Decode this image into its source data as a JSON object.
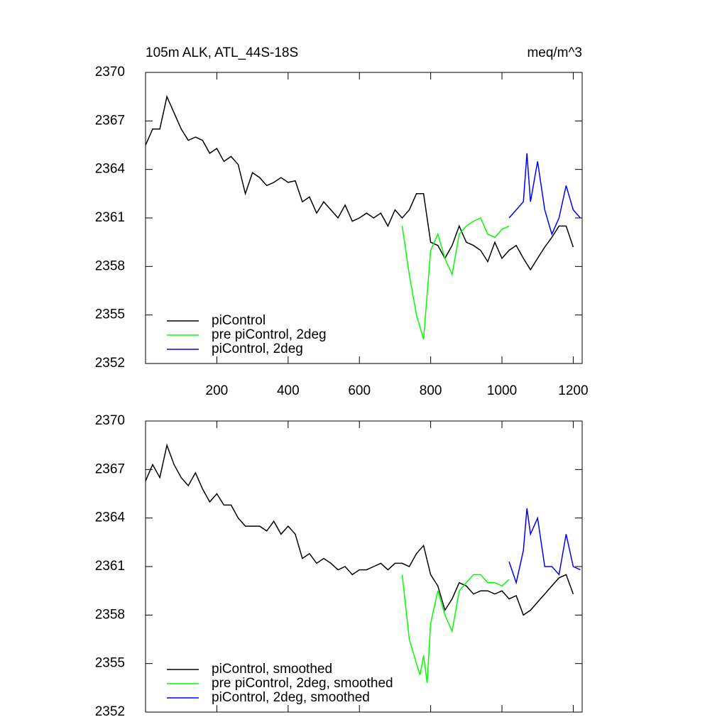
{
  "chart_data": [
    {
      "type": "line",
      "title": "105m ALK, ATL_44S-18S",
      "units": "meq/m^3",
      "xlim": [
        0,
        1225
      ],
      "xticks": [
        200,
        400,
        600,
        800,
        1000,
        1200
      ],
      "show_xtick_labels": true,
      "ylim": [
        2352,
        2370
      ],
      "yticks": [
        2352,
        2355,
        2358,
        2361,
        2364,
        2367,
        2370
      ],
      "series": [
        {
          "name": "piControl",
          "color": "#000000",
          "x": [
            0,
            20,
            40,
            60,
            80,
            100,
            120,
            140,
            160,
            180,
            200,
            220,
            240,
            260,
            280,
            300,
            320,
            340,
            360,
            380,
            400,
            420,
            440,
            460,
            480,
            500,
            520,
            540,
            560,
            580,
            600,
            620,
            640,
            660,
            680,
            700,
            720,
            740,
            760,
            780,
            800,
            820,
            840,
            860,
            880,
            900,
            920,
            940,
            960,
            980,
            1000,
            1020,
            1040,
            1060,
            1080,
            1100,
            1120,
            1140,
            1160,
            1180,
            1200
          ],
          "values": [
            2365.5,
            2366.5,
            2366.5,
            2368.5,
            2367.5,
            2366.5,
            2365.8,
            2366,
            2365.8,
            2365,
            2365.3,
            2364.5,
            2364.8,
            2364.3,
            2362.5,
            2363.8,
            2363.5,
            2363,
            2363.2,
            2363.5,
            2363.2,
            2363.3,
            2362,
            2362.3,
            2361.3,
            2362,
            2361.5,
            2361,
            2361.8,
            2360.8,
            2361,
            2361.3,
            2361,
            2361.3,
            2360.5,
            2361.5,
            2361,
            2361.5,
            2362.5,
            2362.5,
            2359.5,
            2359.3,
            2358.5,
            2359.3,
            2360.5,
            2359.5,
            2359.3,
            2359,
            2358.3,
            2359.5,
            2358.5,
            2359,
            2359.3,
            2358.5,
            2357.8,
            2358.5,
            2359.2,
            2359.8,
            2360.5,
            2360.5,
            2359.2
          ]
        },
        {
          "name": "pre piControl, 2deg",
          "color": "#00ff00",
          "x": [
            720,
            740,
            760,
            780,
            800,
            820,
            840,
            860,
            880,
            900,
            920,
            940,
            960,
            980,
            1000,
            1020
          ],
          "values": [
            2360.5,
            2357.5,
            2355,
            2353.5,
            2359,
            2360,
            2358.5,
            2357.5,
            2360,
            2360.5,
            2360.8,
            2361,
            2360,
            2359.8,
            2360.3,
            2360.5
          ]
        },
        {
          "name": "piControl, 2deg",
          "color": "#0000ff",
          "x": [
            1020,
            1040,
            1060,
            1070,
            1080,
            1100,
            1120,
            1140,
            1160,
            1180,
            1200,
            1220
          ],
          "values": [
            2361,
            2361.5,
            2362,
            2365,
            2362,
            2364.5,
            2361.5,
            2360,
            2361,
            2363,
            2361.5,
            2361
          ]
        }
      ]
    },
    {
      "type": "line",
      "xlim": [
        0,
        1225
      ],
      "xticks": [
        200,
        400,
        600,
        800,
        1000,
        1200
      ],
      "show_xtick_labels": false,
      "ylim": [
        2352,
        2370
      ],
      "yticks": [
        2352,
        2355,
        2358,
        2361,
        2364,
        2367,
        2370
      ],
      "series": [
        {
          "name": "piControl, smoothed",
          "color": "#000000",
          "x": [
            0,
            20,
            40,
            60,
            80,
            100,
            120,
            140,
            160,
            180,
            200,
            220,
            240,
            260,
            280,
            300,
            320,
            340,
            360,
            380,
            400,
            420,
            440,
            460,
            480,
            500,
            520,
            540,
            560,
            580,
            600,
            620,
            640,
            660,
            680,
            700,
            720,
            740,
            760,
            780,
            800,
            820,
            840,
            860,
            880,
            900,
            920,
            940,
            960,
            980,
            1000,
            1020,
            1040,
            1060,
            1080,
            1100,
            1120,
            1140,
            1160,
            1180,
            1200
          ],
          "values": [
            2366.3,
            2367.3,
            2366.5,
            2368.5,
            2367.3,
            2366.5,
            2366,
            2366.8,
            2365.8,
            2365,
            2365.5,
            2364.8,
            2364.8,
            2364,
            2363.5,
            2363.5,
            2363.5,
            2363.2,
            2363.8,
            2363,
            2363.5,
            2363,
            2361.5,
            2361.8,
            2361.2,
            2361.5,
            2361.2,
            2360.8,
            2361,
            2360.5,
            2360.8,
            2360.8,
            2361,
            2361.2,
            2360.8,
            2361.2,
            2361.2,
            2361,
            2361.8,
            2362.3,
            2360.5,
            2359.8,
            2358.3,
            2359,
            2360,
            2359.8,
            2359.3,
            2359.5,
            2359.5,
            2359.3,
            2359.5,
            2359,
            2359.2,
            2358,
            2358.3,
            2358.8,
            2359.3,
            2359.8,
            2360.3,
            2360.5,
            2359.3
          ]
        },
        {
          "name": "pre piControl, 2deg, smoothed",
          "color": "#00ff00",
          "x": [
            720,
            740,
            760,
            770,
            780,
            790,
            800,
            820,
            840,
            860,
            880,
            900,
            920,
            940,
            960,
            980,
            1000,
            1020
          ],
          "values": [
            2360.5,
            2356.5,
            2355,
            2354.3,
            2355.5,
            2353.8,
            2357.5,
            2359.5,
            2358,
            2357,
            2359.5,
            2360,
            2360.5,
            2360.5,
            2360,
            2360,
            2359.8,
            2360.2
          ]
        },
        {
          "name": "piControl, 2deg, smoothed",
          "color": "#0000ff",
          "x": [
            1020,
            1040,
            1060,
            1070,
            1080,
            1100,
            1120,
            1140,
            1160,
            1180,
            1200,
            1220
          ],
          "values": [
            2361.3,
            2360,
            2362,
            2364.6,
            2363,
            2364,
            2361,
            2361,
            2360.5,
            2363,
            2361,
            2360.8
          ]
        }
      ]
    }
  ]
}
